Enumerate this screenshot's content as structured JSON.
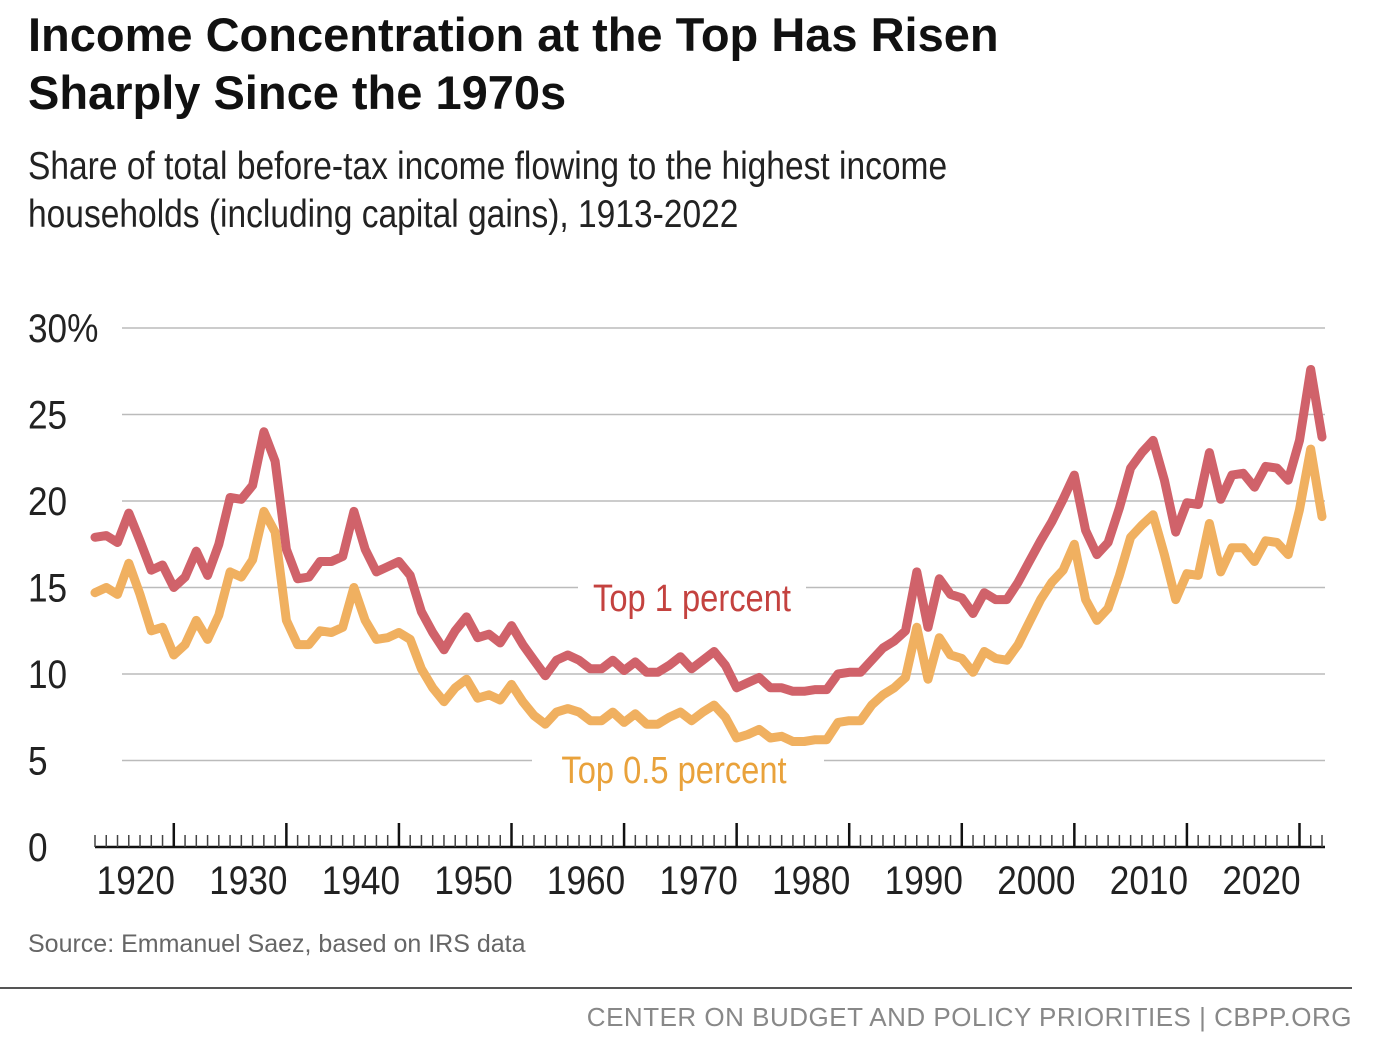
{
  "title_lines": [
    "Income Concentration at the Top Has Risen",
    "Sharply Since the 1970s"
  ],
  "subtitle_lines": [
    "Share of total before-tax income flowing to the highest income",
    "households (including capital gains), 1913-2022"
  ],
  "source": "Source: Emmanuel Saez, based on IRS data",
  "footer": "CENTER ON BUDGET AND POLICY PRIORITIES | CBPP.ORG",
  "chart_data": {
    "type": "line",
    "title": "Income Concentration at the Top Has Risen Sharply Since the 1970s",
    "xlabel": "",
    "ylabel": "",
    "xlim": [
      1913,
      2022
    ],
    "ylim": [
      0,
      30
    ],
    "yticks": [
      0,
      5,
      10,
      15,
      20,
      25,
      30
    ],
    "ytick_labels": [
      "0",
      "5",
      "10",
      "15",
      "20",
      "25",
      "30%"
    ],
    "xticks": [
      1920,
      1930,
      1940,
      1950,
      1960,
      1970,
      1980,
      1990,
      2000,
      2010,
      2020
    ],
    "xtick_labels": [
      "1920",
      "1930",
      "1940",
      "1950",
      "1960",
      "1970",
      "1980",
      "1990",
      "2000",
      "2010",
      "2020"
    ],
    "grid": true,
    "x_start": 1913,
    "series": [
      {
        "name": "Top 1 percent",
        "color": "#d0626a",
        "label_color": "#c4423f",
        "values": [
          17.9,
          18.0,
          17.6,
          19.3,
          17.7,
          16.0,
          16.3,
          15.0,
          15.6,
          17.1,
          15.7,
          17.5,
          20.2,
          20.1,
          20.9,
          24.0,
          22.3,
          17.2,
          15.5,
          15.6,
          16.5,
          16.5,
          16.8,
          19.4,
          17.2,
          15.9,
          16.2,
          16.5,
          15.7,
          13.6,
          12.4,
          11.4,
          12.5,
          13.3,
          12.1,
          12.3,
          11.8,
          12.8,
          11.7,
          10.8,
          9.9,
          10.8,
          11.1,
          10.8,
          10.3,
          10.3,
          10.8,
          10.2,
          10.7,
          10.1,
          10.1,
          10.5,
          11.0,
          10.3,
          10.8,
          11.3,
          10.5,
          9.2,
          9.5,
          9.8,
          9.2,
          9.2,
          9.0,
          9.0,
          9.1,
          9.1,
          10.0,
          10.1,
          10.1,
          10.8,
          11.5,
          11.9,
          12.5,
          15.9,
          12.7,
          15.5,
          14.6,
          14.4,
          13.5,
          14.7,
          14.3,
          14.3,
          15.3,
          16.5,
          17.7,
          18.8,
          20.1,
          21.5,
          18.3,
          16.9,
          17.6,
          19.6,
          21.9,
          22.8,
          23.5,
          21.2,
          18.2,
          19.9,
          19.8,
          22.8,
          20.1,
          21.5,
          21.6,
          20.8,
          22.0,
          21.9,
          21.2,
          23.5,
          27.6,
          23.7
        ]
      },
      {
        "name": "Top 0.5 percent",
        "color": "#f0b060",
        "label_color": "#e9a23b",
        "values": [
          14.7,
          15.0,
          14.6,
          16.4,
          14.6,
          12.5,
          12.7,
          11.1,
          11.7,
          13.1,
          12.0,
          13.4,
          15.9,
          15.6,
          16.6,
          19.4,
          18.2,
          13.1,
          11.7,
          11.7,
          12.5,
          12.4,
          12.7,
          15.0,
          13.1,
          12.0,
          12.1,
          12.4,
          12.0,
          10.3,
          9.2,
          8.4,
          9.2,
          9.7,
          8.6,
          8.8,
          8.5,
          9.4,
          8.4,
          7.6,
          7.1,
          7.8,
          8.0,
          7.8,
          7.3,
          7.3,
          7.8,
          7.2,
          7.7,
          7.1,
          7.1,
          7.5,
          7.8,
          7.3,
          7.8,
          8.2,
          7.5,
          6.3,
          6.5,
          6.8,
          6.3,
          6.4,
          6.1,
          6.1,
          6.2,
          6.2,
          7.2,
          7.3,
          7.3,
          8.2,
          8.8,
          9.2,
          9.8,
          12.7,
          9.7,
          12.1,
          11.1,
          10.9,
          10.1,
          11.3,
          10.9,
          10.8,
          11.7,
          13.0,
          14.3,
          15.3,
          16.0,
          17.5,
          14.3,
          13.1,
          13.8,
          15.7,
          17.9,
          18.6,
          19.2,
          16.9,
          14.3,
          15.8,
          15.7,
          18.7,
          15.9,
          17.3,
          17.3,
          16.5,
          17.7,
          17.6,
          16.9,
          19.5,
          23.0,
          19.1
        ]
      }
    ]
  }
}
